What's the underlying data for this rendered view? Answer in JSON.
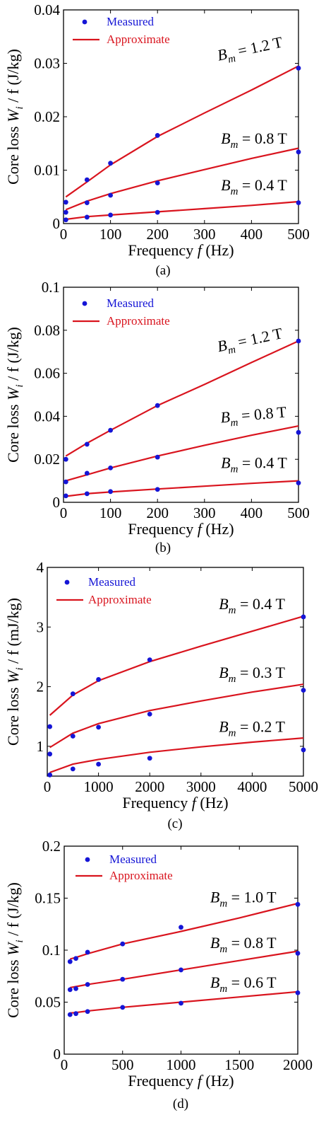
{
  "chart_data": [
    {
      "type": "line",
      "panel_label": "(a)",
      "xlabel": "Frequency",
      "xvar": "f",
      "xunit": "(Hz)",
      "ylabel_prefix": "Core loss",
      "ylabel_var": "W",
      "ylabel_sub": "i",
      "ylabel_rest": "/ f",
      "ylabel_unit": "(J/kg)",
      "xlim": [
        0,
        500
      ],
      "ylim": [
        0,
        0.04
      ],
      "xticks": [
        "0",
        "100",
        "200",
        "300",
        "400",
        "500"
      ],
      "yticks": [
        "0",
        "0.01",
        "0.02",
        "0.03",
        "0.04"
      ],
      "legend": {
        "measured": "Measured",
        "approx": "Approximate"
      },
      "series": [
        {
          "name": "B_m = 1.2 T",
          "label_value": "= 1.2 T",
          "label_angle": -12,
          "label_pos": [
            330,
            0.0305
          ],
          "measured": {
            "x": [
              5,
              50,
              100,
              200,
              500
            ],
            "y": [
              0.004,
              0.0082,
              0.0113,
              0.0165,
              0.0291
            ]
          },
          "approx": {
            "x": [
              5,
              50,
              100,
              200,
              300,
              400,
              500
            ],
            "y": [
              0.005,
              0.0078,
              0.011,
              0.0163,
              0.0207,
              0.025,
              0.0295
            ]
          }
        },
        {
          "name": "B_m = 0.8 T",
          "label_value": "= 0.8 T",
          "label_angle": 0,
          "label_pos": [
            335,
            0.015
          ],
          "measured": {
            "x": [
              5,
              50,
              100,
              200,
              500
            ],
            "y": [
              0.0021,
              0.0039,
              0.0053,
              0.0076,
              0.0134
            ]
          },
          "approx": {
            "x": [
              5,
              50,
              100,
              200,
              300,
              400,
              500
            ],
            "y": [
              0.0026,
              0.0042,
              0.0056,
              0.008,
              0.0101,
              0.0122,
              0.0141
            ]
          }
        },
        {
          "name": "B_m = 0.4 T",
          "label_value": "= 0.4 T",
          "label_angle": 0,
          "label_pos": [
            335,
            0.0062
          ],
          "measured": {
            "x": [
              5,
              50,
              100,
              200,
              500
            ],
            "y": [
              0.0007,
              0.0012,
              0.0016,
              0.0021,
              0.0039
            ]
          },
          "approx": {
            "x": [
              5,
              50,
              100,
              200,
              300,
              400,
              500
            ],
            "y": [
              0.0008,
              0.0013,
              0.0016,
              0.0022,
              0.0028,
              0.0034,
              0.0041
            ]
          }
        }
      ]
    },
    {
      "type": "line",
      "panel_label": "(b)",
      "xlabel": "Frequency",
      "xvar": "f",
      "xunit": "(Hz)",
      "ylabel_prefix": "Core loss",
      "ylabel_var": "W",
      "ylabel_sub": "i",
      "ylabel_rest": "/ f",
      "ylabel_unit": "(J/kg)",
      "xlim": [
        0,
        500
      ],
      "ylim": [
        0,
        0.1
      ],
      "xticks": [
        "0",
        "100",
        "200",
        "300",
        "400",
        "500"
      ],
      "yticks": [
        "0",
        "0.02",
        "0.04",
        "0.06",
        "0.08",
        "0.1"
      ],
      "legend": {
        "measured": "Measured",
        "approx": "Approximate"
      },
      "series": [
        {
          "name": "B_m = 1.2 T",
          "label_value": "= 1.2 T",
          "label_angle": -12,
          "label_pos": [
            330,
            0.07
          ],
          "measured": {
            "x": [
              5,
              50,
              100,
              200,
              500
            ],
            "y": [
              0.02,
              0.027,
              0.0335,
              0.045,
              0.075
            ]
          },
          "approx": {
            "x": [
              5,
              50,
              100,
              200,
              300,
              400,
              500
            ],
            "y": [
              0.0215,
              0.0275,
              0.0335,
              0.045,
              0.0548,
              0.065,
              0.075
            ]
          }
        },
        {
          "name": "B_m = 0.8 T",
          "label_value": "= 0.8 T",
          "label_angle": -5,
          "label_pos": [
            335,
            0.037
          ],
          "measured": {
            "x": [
              5,
              50,
              100,
              200,
              500
            ],
            "y": [
              0.0095,
              0.0135,
              0.016,
              0.021,
              0.0325
            ]
          },
          "approx": {
            "x": [
              5,
              50,
              100,
              200,
              300,
              400,
              500
            ],
            "y": [
              0.01,
              0.0128,
              0.016,
              0.0215,
              0.0265,
              0.0312,
              0.0355
            ]
          }
        },
        {
          "name": "B_m = 0.4 T",
          "label_value": "= 0.4 T",
          "label_angle": 0,
          "label_pos": [
            335,
            0.016
          ],
          "measured": {
            "x": [
              5,
              50,
              100,
              200,
              500
            ],
            "y": [
              0.003,
              0.004,
              0.005,
              0.006,
              0.009
            ]
          },
          "approx": {
            "x": [
              5,
              50,
              100,
              200,
              300,
              400,
              500
            ],
            "y": [
              0.0028,
              0.004,
              0.0048,
              0.0062,
              0.0075,
              0.0088,
              0.01
            ]
          }
        }
      ]
    },
    {
      "type": "line",
      "panel_label": "(c)",
      "xlabel": "Frequency",
      "xvar": "f",
      "xunit": "(Hz)",
      "ylabel_prefix": "Core loss",
      "ylabel_var": "W",
      "ylabel_sub": "i",
      "ylabel_rest": "/ f",
      "ylabel_unit": "(mJ/kg)",
      "xlim": [
        0,
        5000
      ],
      "ylim": [
        0.5,
        4
      ],
      "xticks": [
        "0",
        "1000",
        "2000",
        "3000",
        "4000",
        "5000"
      ],
      "yticks": [
        "1",
        "2",
        "3",
        "4"
      ],
      "ytick_values": [
        1,
        2,
        3,
        4
      ],
      "legend": {
        "measured": "Measured",
        "approx": "Approximate"
      },
      "series": [
        {
          "name": "B_m = 0.4 T",
          "label_value": "= 0.4 T",
          "label_angle": 0,
          "label_pos": [
            3350,
            3.3
          ],
          "measured": {
            "x": [
              50,
              500,
              1000,
              2000,
              5000
            ],
            "y": [
              1.33,
              1.88,
              2.12,
              2.45,
              3.17
            ]
          },
          "approx": {
            "x": [
              50,
              500,
              1000,
              2000,
              3000,
              4000,
              5000
            ],
            "y": [
              1.52,
              1.86,
              2.1,
              2.42,
              2.68,
              2.93,
              3.18
            ]
          }
        },
        {
          "name": "B_m = 0.3 T",
          "label_value": "= 0.3 T",
          "label_angle": 0,
          "label_pos": [
            3350,
            2.15
          ],
          "measured": {
            "x": [
              50,
              500,
              1000,
              2000,
              5000
            ],
            "y": [
              0.87,
              1.17,
              1.32,
              1.54,
              1.94
            ]
          },
          "approx": {
            "x": [
              50,
              500,
              1000,
              2000,
              3000,
              4000,
              5000
            ],
            "y": [
              0.98,
              1.22,
              1.38,
              1.6,
              1.76,
              1.91,
              2.04
            ]
          }
        },
        {
          "name": "B_m = 0.2 T",
          "label_value": "= 0.2 T",
          "label_angle": 0,
          "label_pos": [
            3350,
            1.24
          ],
          "measured": {
            "x": [
              50,
              500,
              1000,
              2000,
              5000
            ],
            "y": [
              0.52,
              0.62,
              0.7,
              0.8,
              0.94
            ]
          },
          "approx": {
            "x": [
              50,
              500,
              1000,
              2000,
              3000,
              4000,
              5000
            ],
            "y": [
              0.56,
              0.7,
              0.78,
              0.9,
              0.99,
              1.07,
              1.14
            ]
          }
        }
      ]
    },
    {
      "type": "line",
      "panel_label": "(d)",
      "xlabel": "Frequency",
      "xvar": "f",
      "xunit": "(Hz)",
      "ylabel_prefix": "Core loss",
      "ylabel_var": "W",
      "ylabel_sub": "i",
      "ylabel_rest": "/ f",
      "ylabel_unit": "(J/kg)",
      "xlim": [
        0,
        2000
      ],
      "ylim": [
        0,
        0.2
      ],
      "xticks": [
        "0",
        "500",
        "1000",
        "1500",
        "2000"
      ],
      "yticks": [
        "0",
        "0.05",
        "0.1",
        "0.15",
        "0.2"
      ],
      "legend": {
        "measured": "Measured",
        "approx": "Approximate"
      },
      "series": [
        {
          "name": "B_m = 1.0 T",
          "label_value": "= 1.0 T",
          "label_angle": 0,
          "label_pos": [
            1250,
            0.146
          ],
          "measured": {
            "x": [
              50,
              100,
              200,
              500,
              1000,
              2000
            ],
            "y": [
              0.089,
              0.092,
              0.098,
              0.106,
              0.122,
              0.144
            ]
          },
          "approx": {
            "x": [
              50,
              100,
              200,
              500,
              1000,
              1500,
              2000
            ],
            "y": [
              0.0915,
              0.093,
              0.0965,
              0.106,
              0.118,
              0.131,
              0.145
            ]
          }
        },
        {
          "name": "B_m = 0.8 T",
          "label_value": "= 0.8 T",
          "label_angle": 0,
          "label_pos": [
            1250,
            0.102
          ],
          "measured": {
            "x": [
              50,
              100,
              200,
              500,
              1000,
              2000
            ],
            "y": [
              0.062,
              0.063,
              0.067,
              0.072,
              0.081,
              0.097
            ]
          },
          "approx": {
            "x": [
              50,
              100,
              200,
              500,
              1000,
              1500,
              2000
            ],
            "y": [
              0.064,
              0.065,
              0.067,
              0.072,
              0.081,
              0.09,
              0.099
            ]
          }
        },
        {
          "name": "B_m = 0.6 T",
          "label_value": "= 0.6 T",
          "label_angle": 0,
          "label_pos": [
            1250,
            0.064
          ],
          "measured": {
            "x": [
              50,
              100,
              200,
              500,
              1000,
              2000
            ],
            "y": [
              0.038,
              0.039,
              0.041,
              0.045,
              0.049,
              0.059
            ]
          },
          "approx": {
            "x": [
              50,
              100,
              200,
              500,
              1000,
              1500,
              2000
            ],
            "y": [
              0.0395,
              0.04,
              0.0415,
              0.045,
              0.05,
              0.055,
              0.06
            ]
          }
        }
      ]
    }
  ],
  "colors": {
    "measured": "#1515d6",
    "approx": "#d9141e",
    "axis": "#000000"
  }
}
